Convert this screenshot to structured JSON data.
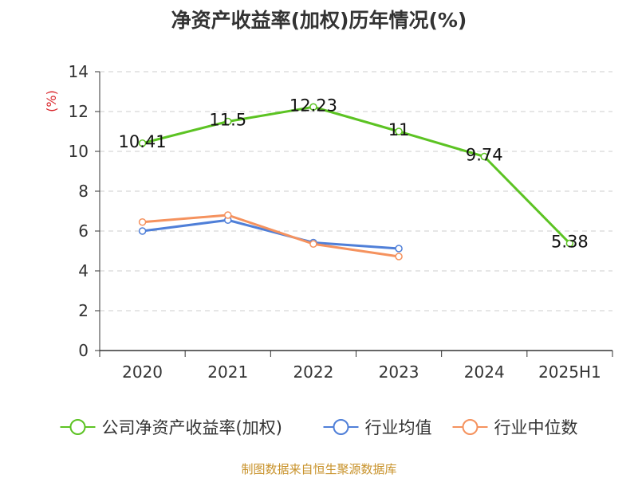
{
  "chart_data": {
    "type": "line",
    "title": "净资产收益率(加权)历年情况(%)",
    "ylabel": "(%)",
    "xlabel": "",
    "categories": [
      "2020",
      "2021",
      "2022",
      "2023",
      "2024",
      "2025H1"
    ],
    "ylim": [
      0,
      14
    ],
    "yticks": [
      0,
      2,
      4,
      6,
      8,
      10,
      12,
      14
    ],
    "grid": true,
    "legend_position": "bottom",
    "series": [
      {
        "name": "公司净资产收益率(加权)",
        "color": "#5cc323",
        "values": [
          10.41,
          11.5,
          12.23,
          11,
          9.74,
          5.38
        ],
        "labels": [
          "10.41",
          "11.5",
          "12.23",
          "11",
          "9.74",
          "5.38"
        ]
      },
      {
        "name": "行业均值",
        "color": "#4f7fd8",
        "values": [
          6.0,
          6.55,
          5.42,
          5.12,
          null,
          null
        ]
      },
      {
        "name": "行业中位数",
        "color": "#f5925e",
        "values": [
          6.45,
          6.8,
          5.35,
          4.72,
          null,
          null
        ]
      }
    ]
  },
  "source_note": "制图数据来自恒生聚源数据库"
}
